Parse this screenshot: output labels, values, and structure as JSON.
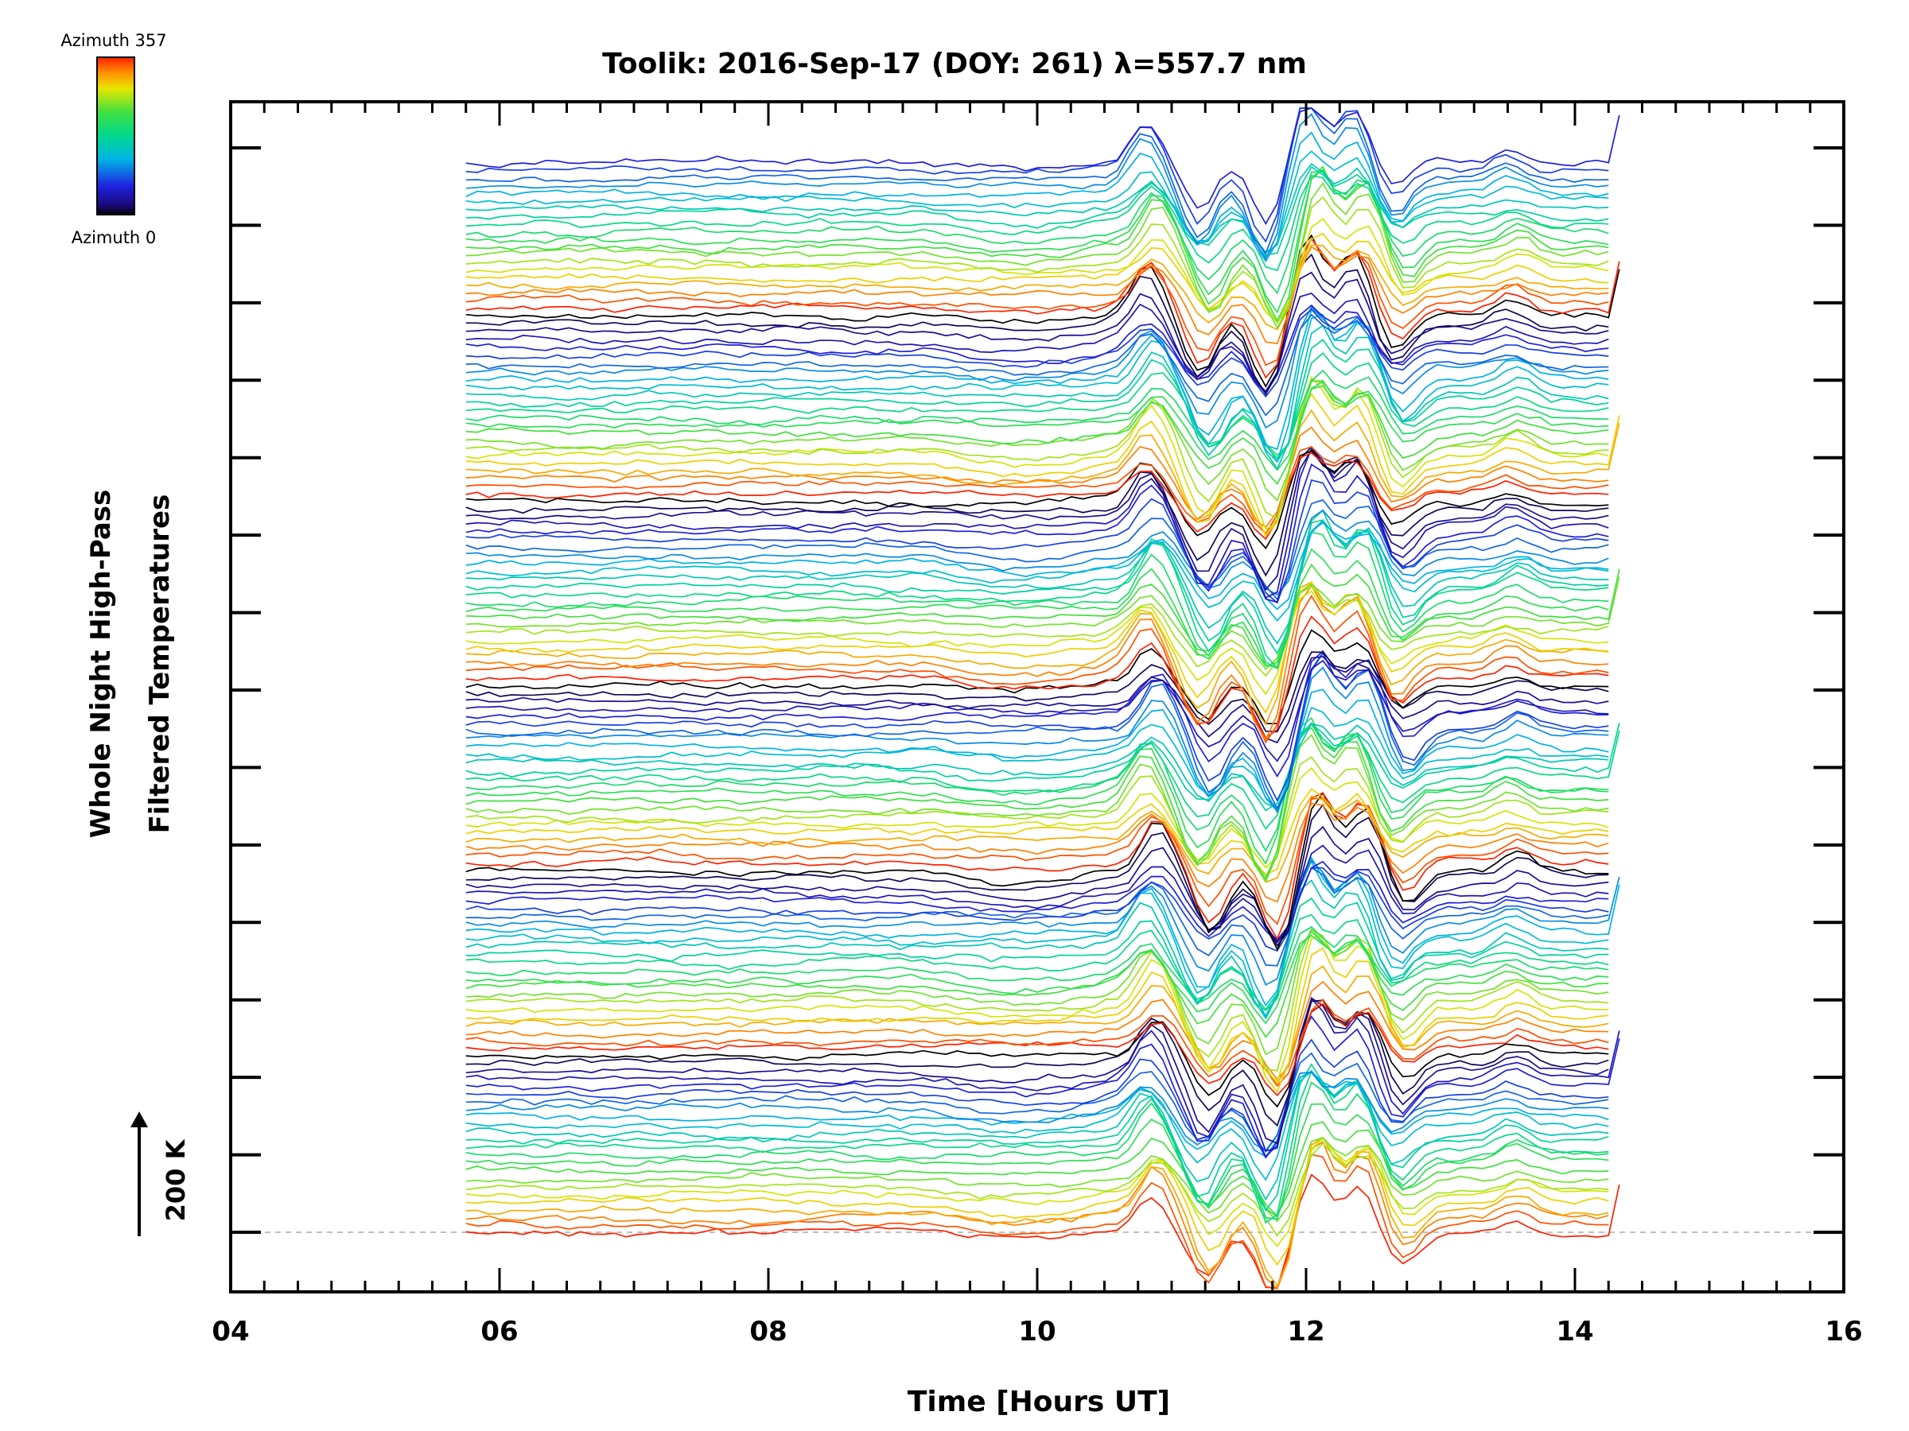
{
  "chart_data": {
    "type": "line",
    "title": "Toolik: 2016-Sep-17 (DOY: 261) λ=557.7 nm",
    "xlabel": "Time [Hours UT]",
    "ylabel_line1": "Whole Night High-Pass",
    "ylabel_line2": "Filtered Temperatures",
    "xlim": [
      4,
      16
    ],
    "x_ticks": [
      "04",
      "06",
      "08",
      "10",
      "12",
      "14",
      "16"
    ],
    "x_tick_values": [
      4,
      6,
      8,
      10,
      12,
      14,
      16
    ],
    "y_tick_count": 15,
    "scale_bar_label": "200 K",
    "colorbar": {
      "top_label": "Azimuth 357",
      "bottom_label": "Azimuth 0",
      "colormap": "rainbow"
    },
    "data_x_range": [
      5.75,
      14.3
    ],
    "series_count": 140,
    "series_note": "Stacked filtered temperature traces, one per sky-map zone, colored by azimuth; values estimated from the plot shape",
    "common_features": [
      {
        "time": 10.85,
        "amplitude": 1.0
      },
      {
        "time": 11.25,
        "amplitude": -1.2
      },
      {
        "time": 11.75,
        "amplitude": -1.6
      },
      {
        "time": 12.05,
        "amplitude": 1.6
      },
      {
        "time": 12.4,
        "amplitude": 1.3
      },
      {
        "time": 12.7,
        "amplitude": -0.7
      },
      {
        "time": 13.55,
        "amplitude": 0.35
      }
    ],
    "grid": false,
    "baseline_dashed": true
  }
}
